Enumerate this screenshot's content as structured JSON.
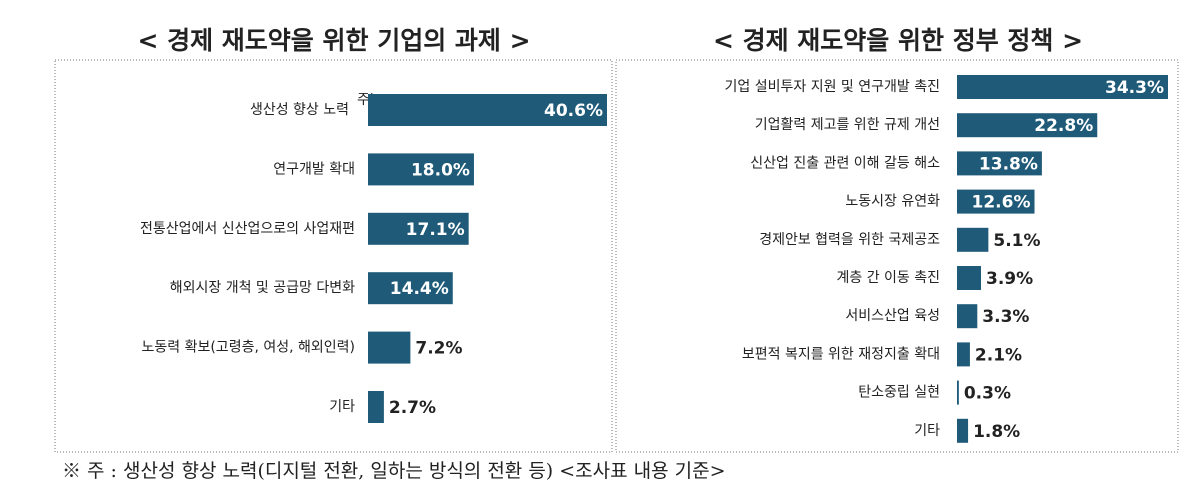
{
  "chart_data": [
    {
      "type": "bar",
      "orientation": "horizontal",
      "title": "< 경제 재도약을 위한 기업의 과제 >",
      "categories": [
        "생산성 향상 노력",
        "연구개발 확대",
        "전통산업에서 신산업으로의 사업재편",
        "해외시장 개척 및 공급망 다변화",
        "노동력 확보(고령층, 여성, 해외인력)",
        "기타"
      ],
      "annotation": "주)",
      "values": [
        40.6,
        18.0,
        17.1,
        14.4,
        7.2,
        2.7
      ],
      "value_labels": [
        "40.6%",
        "18.0%",
        "17.1%",
        "14.4%",
        "7.2%",
        "2.7%"
      ],
      "color": "#1f5b79"
    },
    {
      "type": "bar",
      "orientation": "horizontal",
      "title": "< 경제 재도약을 위한 정부 정책 >",
      "categories": [
        "기업 설비투자 지원 및 연구개발 촉진",
        "기업활력 제고를 위한 규제 개선",
        "신산업 진출 관련 이해 갈등 해소",
        "노동시장 유연화",
        "경제안보 협력을 위한 국제공조",
        "계층 간 이동 촉진",
        "서비스산업 육성",
        "보편적 복지를 위한 재정지출 확대",
        "탄소중립 실현",
        "기타"
      ],
      "values": [
        34.3,
        22.8,
        13.8,
        12.6,
        5.1,
        3.9,
        3.3,
        2.1,
        0.3,
        1.8
      ],
      "value_labels": [
        "34.3%",
        "22.8%",
        "13.8%",
        "12.6%",
        "5.1%",
        "3.9%",
        "3.3%",
        "2.1%",
        "0.3%",
        "1.8%"
      ],
      "color": "#1f5b79"
    }
  ],
  "footnote": "※ 주 : 생산성 향상 노력(디지털 전환, 일하는 방식의 전환 등) <조사표 내용 기준>"
}
